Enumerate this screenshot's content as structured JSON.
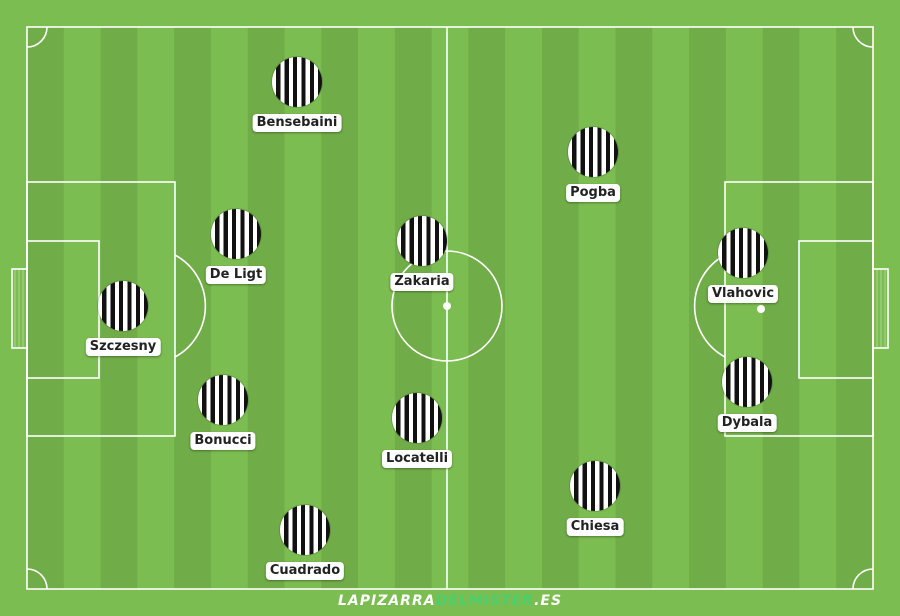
{
  "players": [
    {
      "id": "szczesny",
      "name": "Szczesny"
    },
    {
      "id": "bensebaini",
      "name": "Bensebaini"
    },
    {
      "id": "de-ligt",
      "name": "De Ligt"
    },
    {
      "id": "bonucci",
      "name": "Bonucci"
    },
    {
      "id": "cuadrado",
      "name": "Cuadrado"
    },
    {
      "id": "zakaria",
      "name": "Zakaria"
    },
    {
      "id": "locatelli",
      "name": "Locatelli"
    },
    {
      "id": "pogba",
      "name": "Pogba"
    },
    {
      "id": "chiesa",
      "name": "Chiesa"
    },
    {
      "id": "vlahovic",
      "name": "Vlahovic"
    },
    {
      "id": "dybala",
      "name": "Dybala"
    }
  ],
  "branding": {
    "part1": "LAPIZARRA",
    "part2": "DELMISTER",
    "part3": ".ES"
  },
  "colors": {
    "grass_light": "#7cbd52",
    "grass_dark": "#70ad48",
    "lines": "#ffffff",
    "jersey_stripe_dark": "#111111",
    "jersey_stripe_light": "#ffffff",
    "brand_accent": "#49d06b"
  },
  "icons": {
    "jersey": "black-white-striped-kit-icon"
  }
}
